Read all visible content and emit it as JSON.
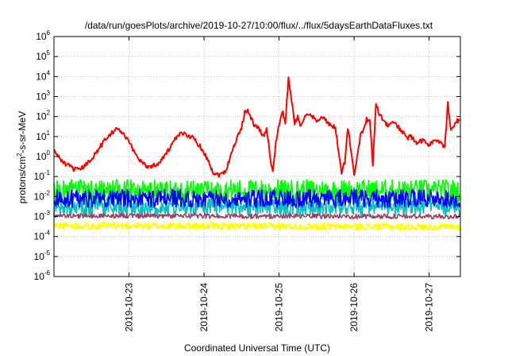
{
  "chart_data": {
    "type": "line",
    "title": "/data/run/goesPlots/archive/2019-10-27/10:00/flux/../flux/5daysEarthDataFluxes.txt",
    "xlabel": "Coordinated Universal Time (UTC)",
    "ylabel": {
      "base": "protons/cm",
      "exp": "2",
      "rest": "-s-sr-MeV"
    },
    "yscale": "log",
    "ylim": [
      1e-06,
      1000000.0
    ],
    "xlim": [
      "2019-10-22T00:00",
      "2019-10-27T10:00"
    ],
    "grid": true,
    "yticks": [
      {
        "value": 1e-06,
        "base": "10",
        "exp": "-6"
      },
      {
        "value": 1e-05,
        "base": "10",
        "exp": "-5"
      },
      {
        "value": 0.0001,
        "base": "10",
        "exp": "-4"
      },
      {
        "value": 0.001,
        "base": "10",
        "exp": "-3"
      },
      {
        "value": 0.01,
        "base": "10",
        "exp": "-2"
      },
      {
        "value": 0.1,
        "base": "10",
        "exp": "-1"
      },
      {
        "value": 1,
        "base": "10",
        "exp": "0"
      },
      {
        "value": 10,
        "base": "10",
        "exp": "1"
      },
      {
        "value": 100,
        "base": "10",
        "exp": "2"
      },
      {
        "value": 1000,
        "base": "10",
        "exp": "3"
      },
      {
        "value": 10000,
        "base": "10",
        "exp": "4"
      },
      {
        "value": 100000,
        "base": "10",
        "exp": "5"
      },
      {
        "value": 1000000,
        "base": "10",
        "exp": "6"
      }
    ],
    "xticks": [
      "2019-10-23",
      "2019-10-24",
      "2019-10-25",
      "2019-10-26",
      "2019-10-27"
    ],
    "series": [
      {
        "color": "#ffff00",
        "x_hours": [
          0,
          129.9
        ],
        "values": [
          0.00035,
          0.0003
        ],
        "noise": 0.18,
        "seed": 11
      },
      {
        "color": "#00ff00",
        "x_hours": [
          0,
          129.9
        ],
        "values": [
          0.02,
          0.02
        ],
        "noise": 0.55,
        "seed": 23
      },
      {
        "color": "#00c0c0",
        "x_hours": [
          0,
          129.9
        ],
        "values": [
          0.003,
          0.003
        ],
        "noise": 0.45,
        "seed": 37
      },
      {
        "color": "#0000ff",
        "x_hours": [
          0,
          129.9
        ],
        "values": [
          0.008,
          0.008
        ],
        "noise": 0.45,
        "seed": 51
      },
      {
        "color": "#994466",
        "x_hours": [
          0,
          129.9
        ],
        "values": [
          0.0011,
          0.001
        ],
        "noise": 0.12,
        "seed": 67
      },
      {
        "color": "#ff0000",
        "x_hours": [
          0,
          1,
          3,
          6,
          8,
          11,
          14,
          17,
          20,
          22,
          24,
          27,
          30,
          33,
          36,
          39,
          41,
          44,
          47,
          49,
          50,
          51,
          53,
          55,
          57,
          58,
          60,
          61,
          62,
          63,
          64,
          66,
          67,
          68,
          69,
          70,
          71,
          72,
          73,
          74,
          75,
          76,
          77,
          78,
          79,
          80,
          82,
          84,
          86,
          88,
          89,
          90,
          91,
          92,
          93,
          94,
          96,
          98,
          100,
          101,
          102,
          103,
          104,
          105,
          106,
          107,
          108,
          110,
          112,
          113,
          114,
          116,
          118,
          120,
          122,
          124,
          125,
          126,
          127,
          128,
          129,
          129.9
        ],
        "values": [
          2,
          1.2,
          0.5,
          0.25,
          0.2,
          0.5,
          2,
          10,
          25,
          15,
          5,
          0.8,
          0.3,
          0.4,
          1.5,
          8,
          15,
          10,
          3,
          0.8,
          0.35,
          0.15,
          0.12,
          0.2,
          2,
          5,
          30,
          150,
          250,
          80,
          40,
          20,
          10,
          25,
          1.5,
          0.15,
          5,
          40,
          200,
          50,
          7000,
          600,
          50,
          100,
          30,
          90,
          120,
          70,
          90,
          40,
          30,
          30,
          2,
          0.15,
          0.5,
          30,
          0.12,
          10,
          70,
          60,
          0.4,
          500,
          150,
          80,
          50,
          30,
          60,
          30,
          15,
          8,
          10,
          5,
          6,
          4,
          7,
          4,
          3,
          500,
          20,
          40,
          60,
          50
        ],
        "noise": 0.12,
        "seed": 79
      }
    ]
  }
}
